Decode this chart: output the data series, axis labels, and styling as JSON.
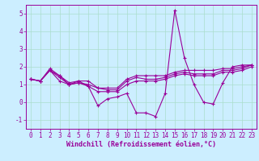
{
  "xlabel": "Windchill (Refroidissement éolien,°C)",
  "ylabel": "",
  "x": [
    0,
    1,
    2,
    3,
    4,
    5,
    6,
    7,
    8,
    9,
    10,
    11,
    12,
    13,
    14,
    15,
    16,
    17,
    18,
    19,
    20,
    21,
    22,
    23
  ],
  "line1": [
    1.3,
    1.2,
    1.8,
    1.2,
    1.0,
    1.2,
    0.9,
    -0.2,
    0.2,
    0.3,
    0.5,
    -0.6,
    -0.6,
    -0.8,
    0.5,
    5.2,
    2.5,
    1.0,
    0.0,
    -0.1,
    1.1,
    2.0,
    2.1,
    2.1
  ],
  "line2": [
    1.3,
    1.2,
    1.9,
    1.5,
    1.1,
    1.2,
    1.2,
    0.8,
    0.8,
    0.8,
    1.3,
    1.5,
    1.5,
    1.5,
    1.5,
    1.7,
    1.8,
    1.8,
    1.8,
    1.8,
    1.9,
    1.9,
    2.0,
    2.1
  ],
  "line3": [
    1.3,
    1.2,
    1.8,
    1.5,
    1.0,
    1.1,
    1.0,
    0.8,
    0.7,
    0.7,
    1.2,
    1.4,
    1.3,
    1.3,
    1.4,
    1.6,
    1.7,
    1.6,
    1.6,
    1.6,
    1.8,
    1.8,
    1.9,
    2.1
  ],
  "line4": [
    1.3,
    1.2,
    1.8,
    1.4,
    1.0,
    1.1,
    0.9,
    0.6,
    0.6,
    0.6,
    1.0,
    1.2,
    1.2,
    1.2,
    1.3,
    1.5,
    1.6,
    1.5,
    1.5,
    1.5,
    1.7,
    1.7,
    1.8,
    2.0
  ],
  "line_color": "#990099",
  "bg_color": "#cceeff",
  "grid_color": "#aaddcc",
  "ylim": [
    -1.5,
    5.5
  ],
  "yticks": [
    -1,
    0,
    1,
    2,
    3,
    4,
    5
  ],
  "marker": "+",
  "markersize": 3,
  "linewidth": 0.8,
  "tick_fontsize": 5.5,
  "xlabel_fontsize": 6.0
}
